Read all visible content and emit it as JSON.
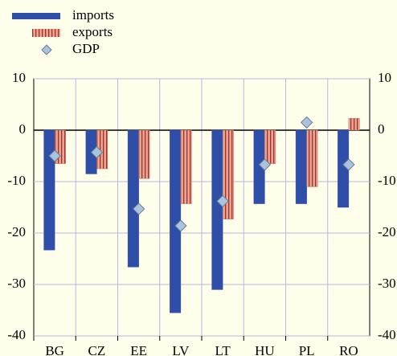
{
  "chart_data": {
    "type": "bar",
    "categories": [
      "BG",
      "CZ",
      "EE",
      "LV",
      "LT",
      "HU",
      "PL",
      "RO"
    ],
    "series": [
      {
        "name": "imports",
        "color": "#2f4ea8",
        "values": [
          -23.3,
          -8.5,
          -26.6,
          -35.5,
          -31,
          -14.3,
          -14.3,
          -15
        ]
      },
      {
        "name": "exports",
        "color": "#e8a08a",
        "values": [
          -6.5,
          -7.5,
          -9.4,
          -14.3,
          -17.3,
          -6.5,
          -11,
          2.3
        ]
      },
      {
        "name": "GDP",
        "color": "#a9c4de",
        "values": [
          -5,
          -4.3,
          -15.3,
          -18.6,
          -13.8,
          -6.7,
          1.5,
          -6.7
        ]
      }
    ],
    "ylim": [
      -40,
      10
    ],
    "yticks": [
      -40,
      -30,
      -20,
      -10,
      0,
      10
    ],
    "grid": true
  }
}
